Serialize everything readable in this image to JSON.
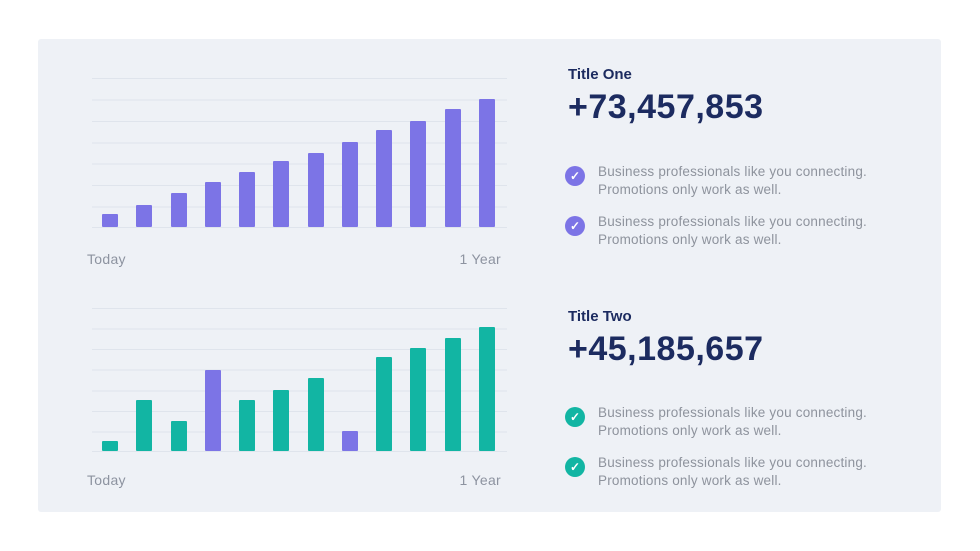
{
  "colors": {
    "purple": "#7C74E6",
    "teal": "#12B5A3",
    "navy": "#1C2B60",
    "gray_text": "#8E939D",
    "card_bg": "#EEF1F6",
    "gridline": "#DFE4EC",
    "page_bg": "#FFFFFF"
  },
  "icons": {
    "check": "✓"
  },
  "chart_data": [
    {
      "id": "chart-top",
      "type": "bar",
      "title": "",
      "xlabel_left": "Today",
      "xlabel_right": "1 Year",
      "ylim": [
        0,
        100
      ],
      "grid": true,
      "categories": [
        "1",
        "2",
        "3",
        "4",
        "5",
        "6",
        "7",
        "8",
        "9",
        "10",
        "11",
        "12"
      ],
      "values": [
        9,
        15,
        23,
        30,
        37,
        44,
        50,
        57,
        65,
        71,
        79,
        86
      ],
      "bar_color_keys": [
        "purple",
        "purple",
        "purple",
        "purple",
        "purple",
        "purple",
        "purple",
        "purple",
        "purple",
        "purple",
        "purple",
        "purple"
      ]
    },
    {
      "id": "chart-bottom",
      "type": "bar",
      "title": "",
      "xlabel_left": "Today",
      "xlabel_right": "1 Year",
      "ylim": [
        0,
        100
      ],
      "grid": true,
      "categories": [
        "1",
        "2",
        "3",
        "4",
        "5",
        "6",
        "7",
        "8",
        "9",
        "10",
        "11",
        "12"
      ],
      "values": [
        7,
        36,
        21,
        57,
        36,
        43,
        51,
        14,
        66,
        72,
        79,
        87
      ],
      "bar_color_keys": [
        "teal",
        "teal",
        "teal",
        "purple",
        "teal",
        "teal",
        "teal",
        "purple",
        "teal",
        "teal",
        "teal",
        "teal"
      ]
    }
  ],
  "stats": [
    {
      "title": "Title One",
      "value": "+73,457,853",
      "accent_key": "purple",
      "bullets": [
        {
          "line1": "Business professionals like you connecting.",
          "line2": "Promotions only work as well."
        },
        {
          "line1": "Business professionals like you connecting.",
          "line2": "Promotions only work as well."
        }
      ]
    },
    {
      "title": "Title Two",
      "value": "+45,185,657",
      "accent_key": "teal",
      "bullets": [
        {
          "line1": "Business professionals like you connecting.",
          "line2": "Promotions only work as well."
        },
        {
          "line1": "Business professionals like you connecting.",
          "line2": "Promotions only work as well."
        }
      ]
    }
  ]
}
